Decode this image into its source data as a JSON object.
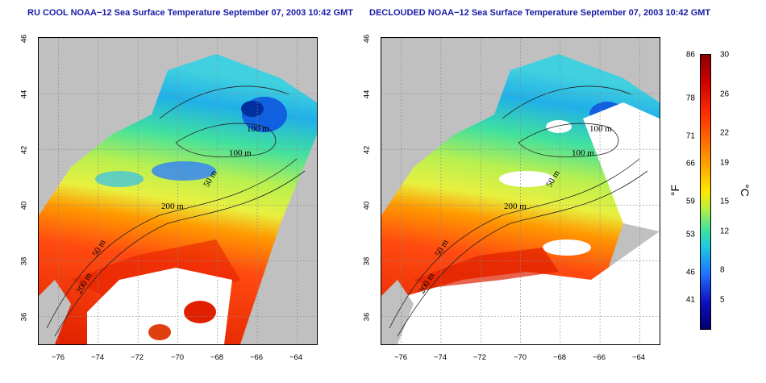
{
  "panels": [
    {
      "title": "RU COOL NOAA−12 Sea Surface Temperature September 07, 2003 10:42 GMT"
    },
    {
      "title": "DECLOUDED NOAA−12 Sea Surface Temperature September 07, 2003 10:42 GMT"
    }
  ],
  "axes": {
    "lon_ticks": [
      "−76",
      "−74",
      "−72",
      "−70",
      "−68",
      "−66",
      "−64"
    ],
    "lat_ticks": [
      "46",
      "44",
      "42",
      "40",
      "38",
      "36"
    ],
    "lon_range": [
      -77,
      -63
    ],
    "lat_range": [
      35,
      46
    ]
  },
  "contours": {
    "labels": [
      "100 m",
      "100 m",
      "50 m",
      "200 m",
      "50 m",
      "200 m"
    ]
  },
  "colorbar": {
    "fahrenheit_label": "°F",
    "celsius_label": "°C",
    "fahrenheit_ticks": [
      "86",
      "78",
      "71",
      "66",
      "59",
      "53",
      "46",
      "41"
    ],
    "celsius_ticks": [
      "30",
      "26",
      "22",
      "19",
      "15",
      "12",
      "8",
      "5"
    ],
    "fahrenheit_values": [
      86,
      78,
      71,
      66,
      59,
      53,
      46,
      41
    ],
    "celsius_values": [
      30,
      26,
      22,
      19,
      15,
      12,
      8,
      5
    ],
    "range_c": [
      2,
      30
    ]
  },
  "colors": {
    "land": "#c0c0c0",
    "cloud": "#ffffff",
    "title": "#1a1aa6"
  }
}
